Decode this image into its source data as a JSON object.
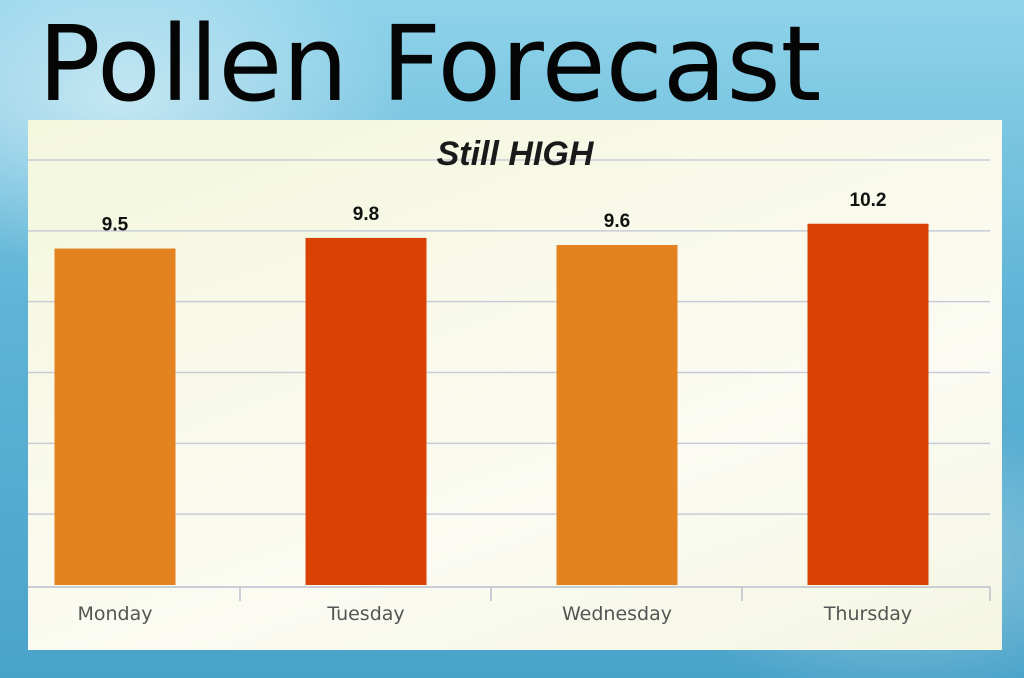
{
  "title": "Pollen Forecast",
  "chart_data": {
    "type": "bar",
    "title": "Still HIGH",
    "xlabel": "",
    "ylabel": "",
    "categories": [
      "Monday",
      "Tuesday",
      "Wednesday",
      "Thursday"
    ],
    "values": [
      9.5,
      9.8,
      9.6,
      10.2
    ],
    "value_labels": [
      "9.5",
      "9.8",
      "9.6",
      "10.2"
    ],
    "ylim": [
      0,
      12
    ],
    "grid": true,
    "legend": "none",
    "colors": [
      "#e3821f",
      "#d84304",
      "#e3821f",
      "#d84304"
    ],
    "grid_color": "#c7cdd8"
  }
}
